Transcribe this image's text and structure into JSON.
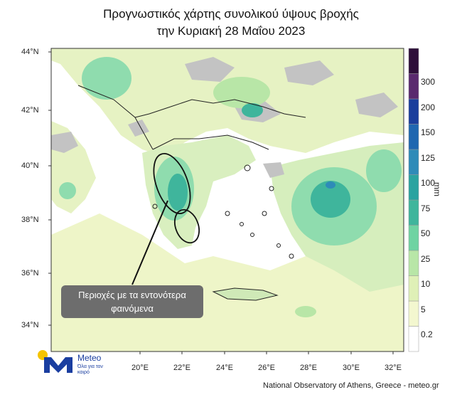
{
  "title_line1": "Προγνωστικός χάρτης συνολικού ύψους βροχής",
  "title_line2": "την Κυριακή 28 Μαΐου 2023",
  "lat_labels": [
    "44°N",
    "42°N",
    "40°N",
    "38°N",
    "36°N",
    "34°N"
  ],
  "lon_labels": [
    "20°E",
    "22°E",
    "24°E",
    "26°E",
    "28°E",
    "30°E",
    "32°E"
  ],
  "colorbar": {
    "unit": "mm",
    "levels": [
      "0.2",
      "5",
      "10",
      "25",
      "50",
      "75",
      "100",
      "125",
      "150",
      "200",
      "300"
    ],
    "colors": [
      "#ffffff",
      "#f3f7cf",
      "#dff0b7",
      "#b8e6a7",
      "#6fd3a2",
      "#3fb59c",
      "#2aa3a0",
      "#2e8bb8",
      "#1f67b0",
      "#1a3e9c",
      "#5a2a6e",
      "#2e0f3a"
    ]
  },
  "annotation": "Περιοχές με τα εντονότερα φαινόμενα",
  "logo": {
    "name": "Meteo",
    "tagline": "Όλα για τον καιρό"
  },
  "credit": "National Observatory of Athens, Greece - meteo.gr",
  "colors": {
    "sea": "#ffffff",
    "land_dry": "#c3c3c3",
    "rain_light": "#eef5c8",
    "rain_mid": "#8fdcae",
    "rain_heavy": "#3aa89e"
  }
}
